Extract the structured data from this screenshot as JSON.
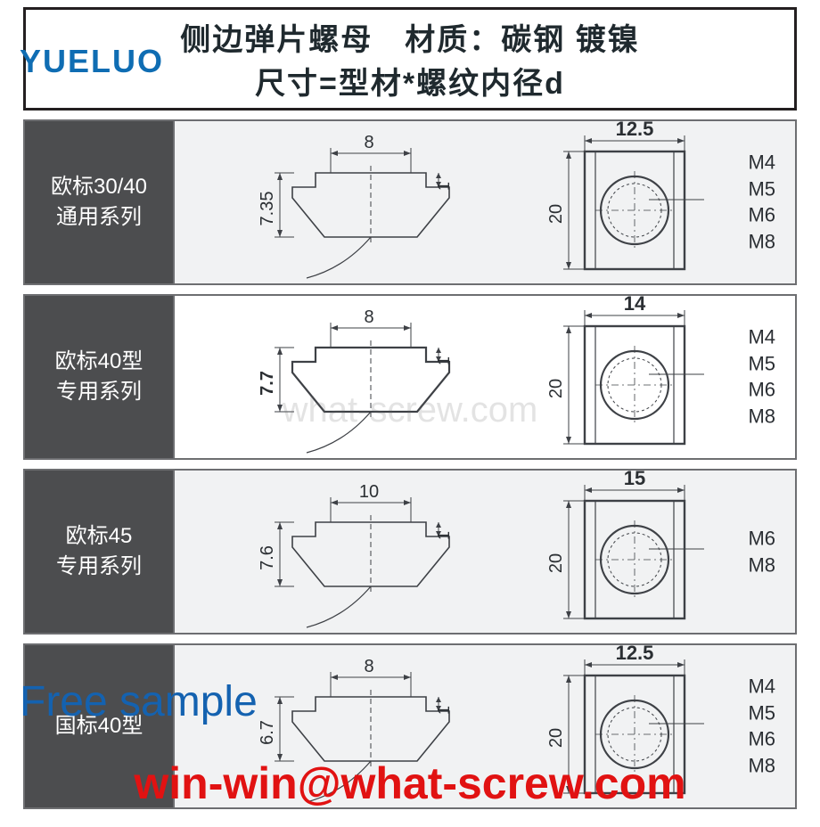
{
  "brand": "YUELUO",
  "header": {
    "line1": "侧边弹片螺母　材质：碳钢 镀镍",
    "line2": "尺寸=型材*螺纹内径d"
  },
  "watermark_text": "what-screw.com",
  "free_sample_text": "Free sample",
  "email_text": "win-win@what-screw.com",
  "colors": {
    "border": "#6d6e71",
    "header_border": "#231f20",
    "label_bg": "#4c4d4f",
    "label_fg": "#ffffff",
    "row_bg_tinted": "#f1f2f3",
    "row_bg_plain": "#ffffff",
    "stroke": "#3e4146",
    "dim_line": "#3e4146",
    "brand_color": "#0f6db3",
    "sample_color": "#1462b0",
    "email_color": "#e11212"
  },
  "font": {
    "header_size_pt": 26,
    "label_size_pt": 18,
    "dim_size_pt": 16,
    "thread_size_pt": 16,
    "brand_size_pt": 28,
    "sample_size_pt": 36,
    "email_size_pt": 38
  },
  "rows": [
    {
      "tinted": true,
      "label_line1": "欧标30/40",
      "label_line2": "通用系列",
      "profile": {
        "top_width": "8",
        "height": "7.35",
        "notch": "1"
      },
      "top_view": {
        "width_label": "12.5",
        "height_label": "20"
      },
      "threads": [
        "M4",
        "M5",
        "M6",
        "M8"
      ]
    },
    {
      "tinted": false,
      "label_line1": "欧标40型",
      "label_line2": "专用系列",
      "profile": {
        "top_width": "8",
        "height": "7.7",
        "notch": "1"
      },
      "top_view": {
        "width_label": "14",
        "height_label": "20"
      },
      "threads": [
        "M4",
        "M5",
        "M6",
        "M8"
      ]
    },
    {
      "tinted": true,
      "label_line1": "欧标45",
      "label_line2": "专用系列",
      "profile": {
        "top_width": "10",
        "height": "7.6",
        "notch": "1"
      },
      "top_view": {
        "width_label": "15",
        "height_label": "20"
      },
      "threads": [
        "M6",
        "M8"
      ]
    },
    {
      "tinted": true,
      "label_line1": "国标40型",
      "label_line2": "",
      "profile": {
        "top_width": "8",
        "height": "6.7",
        "notch": "1"
      },
      "top_view": {
        "width_label": "12.5",
        "height_label": "20"
      },
      "threads": [
        "M4",
        "M5",
        "M6",
        "M8"
      ]
    }
  ]
}
